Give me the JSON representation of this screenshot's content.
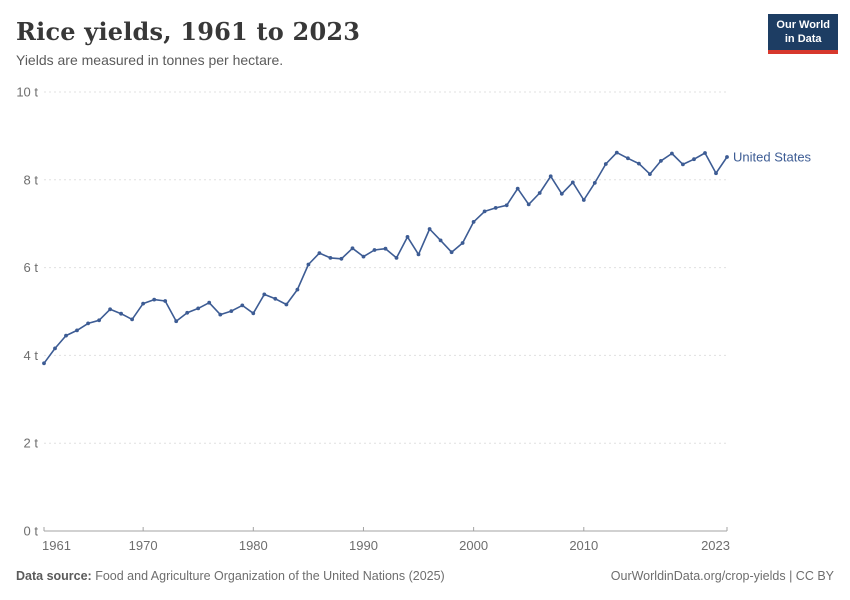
{
  "header": {
    "title": "Rice yields, 1961 to 2023",
    "subtitle": "Yields are measured in tonnes per hectare."
  },
  "logo": {
    "line1": "Our World",
    "line2": "in Data",
    "bg_color": "#1d3d63",
    "bar_color": "#d7382d"
  },
  "chart_data": {
    "type": "line",
    "title": "Rice yields, 1961 to 2023",
    "ylabel": "tonnes per hectare",
    "unit_suffix": " t",
    "ylim": [
      0,
      10
    ],
    "yticks": [
      0,
      2,
      4,
      6,
      8,
      10
    ],
    "xticks": [
      1961,
      1970,
      1980,
      1990,
      2000,
      2010,
      2023
    ],
    "grid": "horizontal-dashed",
    "legend_position": "end-of-line",
    "line_color": "#3d5c94",
    "years": [
      1961,
      1962,
      1963,
      1964,
      1965,
      1966,
      1967,
      1968,
      1969,
      1970,
      1971,
      1972,
      1973,
      1974,
      1975,
      1976,
      1977,
      1978,
      1979,
      1980,
      1981,
      1982,
      1983,
      1984,
      1985,
      1986,
      1987,
      1988,
      1989,
      1990,
      1991,
      1992,
      1993,
      1994,
      1995,
      1996,
      1997,
      1998,
      1999,
      2000,
      2001,
      2002,
      2003,
      2004,
      2005,
      2006,
      2007,
      2008,
      2009,
      2010,
      2011,
      2012,
      2013,
      2014,
      2015,
      2016,
      2017,
      2018,
      2019,
      2020,
      2021,
      2022,
      2023
    ],
    "series": [
      {
        "name": "United States",
        "color": "#3d5c94",
        "values": [
          3.82,
          4.16,
          4.45,
          4.57,
          4.73,
          4.8,
          5.05,
          4.95,
          4.82,
          5.18,
          5.27,
          5.24,
          4.78,
          4.97,
          5.07,
          5.2,
          4.93,
          5.01,
          5.14,
          4.96,
          5.39,
          5.29,
          5.16,
          5.5,
          6.07,
          6.33,
          6.22,
          6.2,
          6.44,
          6.25,
          6.4,
          6.43,
          6.22,
          6.7,
          6.3,
          6.88,
          6.62,
          6.35,
          6.56,
          7.04,
          7.28,
          7.36,
          7.42,
          7.8,
          7.44,
          7.7,
          8.08,
          7.68,
          7.94,
          7.54,
          7.93,
          8.36,
          8.62,
          8.49,
          8.37,
          8.13,
          8.43,
          8.6,
          8.35,
          8.47,
          8.61,
          8.15,
          8.52
        ]
      }
    ],
    "axis_colors": {
      "grid": "#e0e0e0",
      "axis": "#a3a3a3",
      "tick_text": "#6e6e6e"
    }
  },
  "footer": {
    "source_label": "Data source:",
    "source_text": " Food and Agriculture Organization of the United Nations (2025)",
    "credit": "OurWorldinData.org/crop-yields | CC BY"
  }
}
